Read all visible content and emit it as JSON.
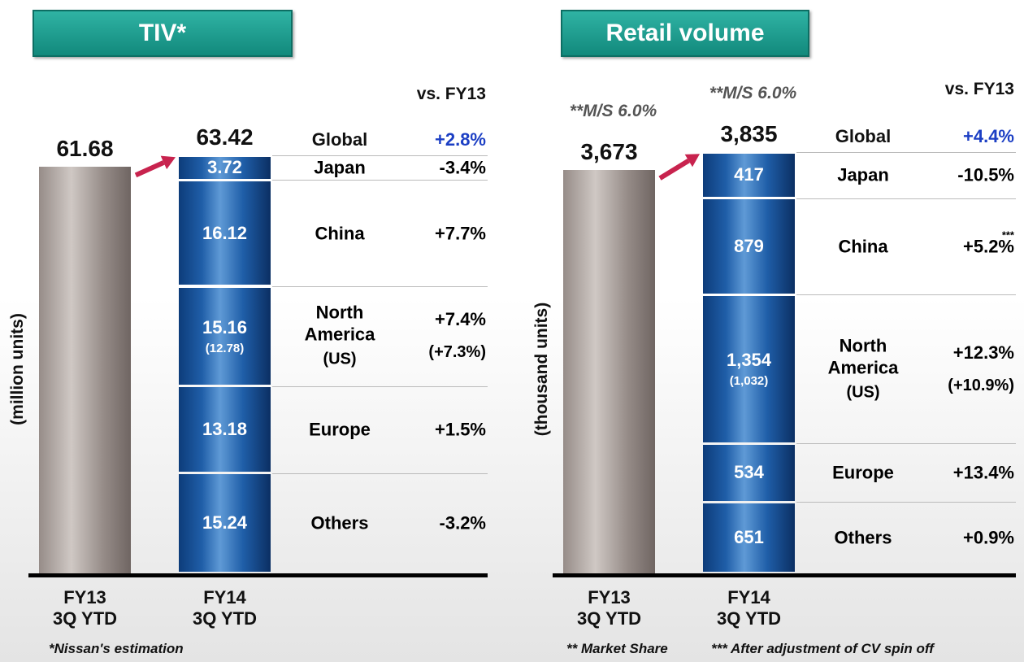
{
  "chart_data": [
    {
      "type": "stacked_bar",
      "title": "TIV*",
      "axis_label": "(million units)",
      "change_header": "vs. FY13",
      "categories": [
        "FY13\n3Q YTD",
        "FY14\n3Q YTD"
      ],
      "totals": [
        61.68,
        63.42
      ],
      "total_name": "Global",
      "total_change": "+2.8%",
      "ylim": [
        0,
        70
      ],
      "bar_colors": [
        "#968c88",
        "#1f5ea8"
      ],
      "series": [
        {
          "name": "Japan",
          "value": 3.72,
          "change": "-3.4%"
        },
        {
          "name": "China",
          "value": 16.12,
          "change": "+7.7%"
        },
        {
          "name": "North\nAmerica",
          "value": 15.16,
          "change": "+7.4%",
          "sub_name": "(US)",
          "sub_label": "(12.78)",
          "sub_change": "(+7.3%)"
        },
        {
          "name": "Europe",
          "value": 13.18,
          "change": "+1.5%"
        },
        {
          "name": "Others",
          "value": 15.24,
          "change": "-3.2%"
        }
      ],
      "footnotes": [
        "*Nissan's estimation"
      ]
    },
    {
      "type": "stacked_bar",
      "title": "Retail volume",
      "axis_label": "(thousand units)",
      "change_header": "vs. FY13",
      "categories": [
        "FY13\n3Q YTD",
        "FY14\n3Q YTD"
      ],
      "totals": [
        3673,
        3835
      ],
      "total_labels": [
        "3,673",
        "3,835"
      ],
      "total_name": "Global",
      "total_change": "+4.4%",
      "ylim": [
        0,
        4200
      ],
      "bar_colors": [
        "#968c88",
        "#1f5ea8"
      ],
      "annotations": [
        "**M/S  6.0%",
        "**M/S  6.0%"
      ],
      "series": [
        {
          "name": "Japan",
          "value": 417,
          "change": "-10.5%"
        },
        {
          "name": "China",
          "value": 879,
          "change": "+5.2%",
          "note": "***"
        },
        {
          "name": "North\nAmerica",
          "value": 1354,
          "value_label": "1,354",
          "change": "+12.3%",
          "sub_name": "(US)",
          "sub_label": "(1,032)",
          "sub_change": "(+10.9%)"
        },
        {
          "name": "Europe",
          "value": 534,
          "change": "+13.4%"
        },
        {
          "name": "Others",
          "value": 651,
          "change": "+0.9%"
        }
      ],
      "footnotes": [
        "** Market Share",
        "*** After adjustment of CV spin off"
      ]
    }
  ]
}
